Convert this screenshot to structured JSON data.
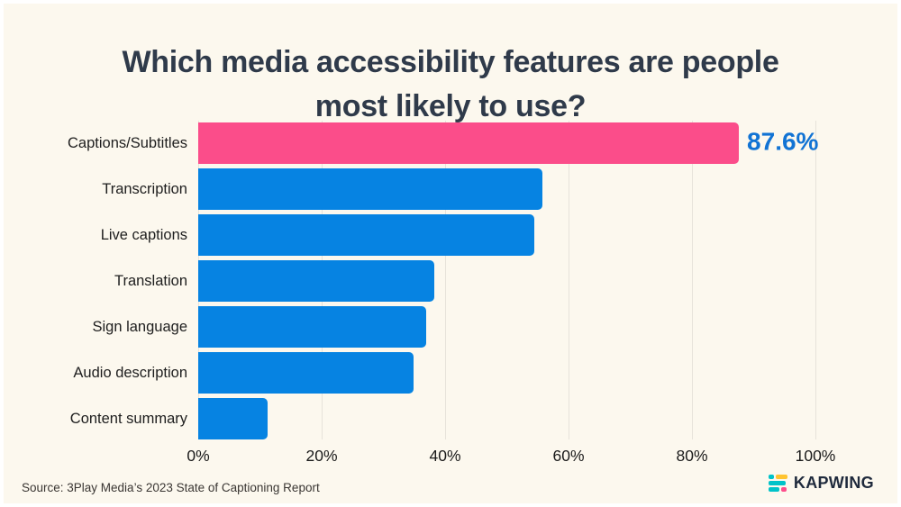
{
  "title": {
    "line1": "Which media accessibility features are people",
    "line2": "most likely to use?"
  },
  "chart_data": {
    "type": "bar",
    "orientation": "horizontal",
    "title": "Which media accessibility features are people most likely to use?",
    "categories": [
      "Captions/Subtitles",
      "Transcription",
      "Live captions",
      "Translation",
      "Sign language",
      "Audio description",
      "Content summary"
    ],
    "values": [
      87.6,
      55.8,
      54.5,
      38.2,
      36.9,
      34.9,
      11.2
    ],
    "highlight_index": 0,
    "data_labels": [
      {
        "index": 0,
        "text": "87.6%"
      }
    ],
    "x_ticks": [
      {
        "pos": 0,
        "label": "0%"
      },
      {
        "pos": 20,
        "label": "20%"
      },
      {
        "pos": 40,
        "label": "40%"
      },
      {
        "pos": 60,
        "label": "60%"
      },
      {
        "pos": 80,
        "label": "80%"
      },
      {
        "pos": 100,
        "label": "100%"
      }
    ],
    "xlim": [
      0,
      100
    ],
    "grid": "vertical",
    "legend": "none",
    "colors": {
      "highlight_bar": "#FB4D8A",
      "bar": "#0683E2",
      "value_label": "#1173D4",
      "gridline": "#E7E3DA"
    }
  },
  "source": "Source: 3Play Media’s 2023 State of Captioning Report",
  "logo": {
    "text": "KAPWING",
    "icon_colors": {
      "teal": "#00C3C9",
      "yellow": "#FFC430",
      "pink": "#FD4E8C"
    }
  },
  "background": {
    "canvas": "#FCF8EE",
    "frame": "#FFFFFF",
    "title_color": "#2F3A4A"
  }
}
